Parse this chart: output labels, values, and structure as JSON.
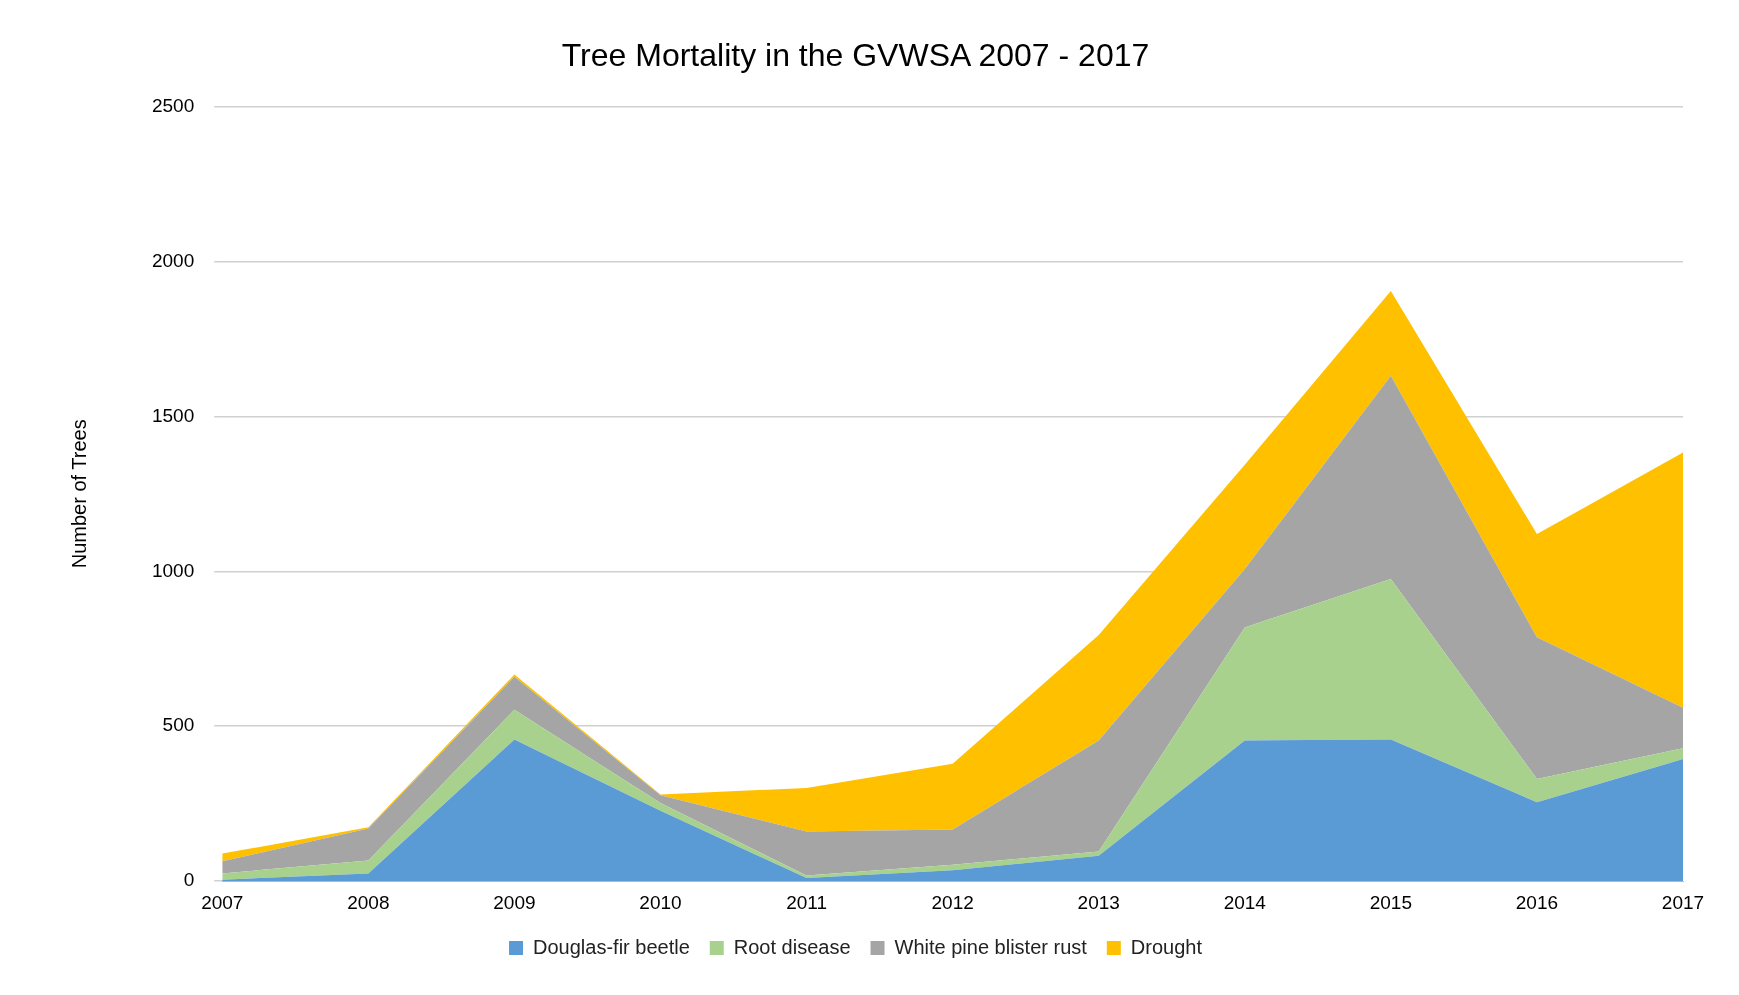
{
  "chart_data": {
    "type": "area",
    "title": "Tree Mortality in the GVWSA 2007 - 2017",
    "ylabel": "Number of Trees",
    "stacked": true,
    "categories": [
      "2007",
      "2008",
      "2009",
      "2010",
      "2011",
      "2012",
      "2013",
      "2014",
      "2015",
      "2016",
      "2017"
    ],
    "series": [
      {
        "name": "Douglas-fir beetle",
        "color": "#5b9bd5",
        "values": [
          5,
          25,
          457,
          227,
          10,
          35,
          82,
          454,
          457,
          255,
          394
        ]
      },
      {
        "name": "Root disease",
        "color": "#a9d18e",
        "values": [
          20,
          42,
          96,
          25,
          8,
          18,
          14,
          365,
          518,
          75,
          35
        ]
      },
      {
        "name": "White pine blister rust",
        "color": "#a5a5a5",
        "values": [
          39,
          103,
          107,
          25,
          142,
          114,
          358,
          188,
          656,
          457,
          131
        ]
      },
      {
        "name": "Drought",
        "color": "#ffc000",
        "values": [
          25,
          4,
          7,
          3,
          141,
          212,
          340,
          337,
          273,
          333,
          823
        ]
      }
    ],
    "ylim": [
      0,
      2500
    ],
    "yticks": [
      0,
      500,
      1000,
      1500,
      2000,
      2500
    ],
    "grid": "y",
    "legend": "bottom"
  }
}
